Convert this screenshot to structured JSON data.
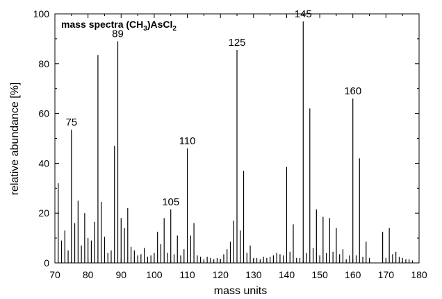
{
  "chart_data": {
    "type": "bar",
    "style": "stick-spectrum",
    "title": {
      "prefix": "mass spectra (CH",
      "sub1": "3",
      "mid": ")AsCl",
      "sub2": "2"
    },
    "xlabel": "mass units",
    "ylabel": "relative abundance [%]",
    "xlim": [
      70,
      180
    ],
    "ylim": [
      0,
      100
    ],
    "xticks": [
      70,
      80,
      90,
      100,
      110,
      120,
      130,
      140,
      150,
      160,
      170,
      180
    ],
    "yticks": [
      0,
      20,
      40,
      60,
      80,
      100
    ],
    "grid": false,
    "bar_color": "#000000",
    "peak_annotations": [
      {
        "x": 75,
        "text": "75"
      },
      {
        "x": 89,
        "text": "89"
      },
      {
        "x": 105,
        "text": "105"
      },
      {
        "x": 110,
        "text": "110"
      },
      {
        "x": 125,
        "text": "125"
      },
      {
        "x": 145,
        "text": "145"
      },
      {
        "x": 160,
        "text": "160"
      }
    ],
    "peaks": [
      {
        "x": 71,
        "y": 32
      },
      {
        "x": 72,
        "y": 9
      },
      {
        "x": 73,
        "y": 13
      },
      {
        "x": 74,
        "y": 5
      },
      {
        "x": 75,
        "y": 53.5
      },
      {
        "x": 76,
        "y": 16
      },
      {
        "x": 77,
        "y": 25
      },
      {
        "x": 78,
        "y": 7
      },
      {
        "x": 79,
        "y": 20
      },
      {
        "x": 80,
        "y": 10
      },
      {
        "x": 81,
        "y": 9
      },
      {
        "x": 82,
        "y": 16.5
      },
      {
        "x": 83,
        "y": 83.5
      },
      {
        "x": 84,
        "y": 24.5
      },
      {
        "x": 85,
        "y": 10.5
      },
      {
        "x": 86,
        "y": 4
      },
      {
        "x": 87,
        "y": 5
      },
      {
        "x": 88,
        "y": 47
      },
      {
        "x": 89,
        "y": 89
      },
      {
        "x": 90,
        "y": 18
      },
      {
        "x": 91,
        "y": 14
      },
      {
        "x": 92,
        "y": 22
      },
      {
        "x": 93,
        "y": 6.5
      },
      {
        "x": 94,
        "y": 5
      },
      {
        "x": 95,
        "y": 3
      },
      {
        "x": 96,
        "y": 3.5
      },
      {
        "x": 97,
        "y": 6
      },
      {
        "x": 98,
        "y": 2.5
      },
      {
        "x": 99,
        "y": 3
      },
      {
        "x": 100,
        "y": 4
      },
      {
        "x": 101,
        "y": 12.5
      },
      {
        "x": 102,
        "y": 7.5
      },
      {
        "x": 103,
        "y": 18
      },
      {
        "x": 104,
        "y": 4
      },
      {
        "x": 105,
        "y": 21.5
      },
      {
        "x": 106,
        "y": 3.5
      },
      {
        "x": 107,
        "y": 11
      },
      {
        "x": 108,
        "y": 3
      },
      {
        "x": 109,
        "y": 5.5
      },
      {
        "x": 110,
        "y": 46
      },
      {
        "x": 111,
        "y": 11
      },
      {
        "x": 112,
        "y": 16
      },
      {
        "x": 113,
        "y": 3
      },
      {
        "x": 114,
        "y": 2.5
      },
      {
        "x": 115,
        "y": 1.5
      },
      {
        "x": 116,
        "y": 2.5
      },
      {
        "x": 117,
        "y": 2
      },
      {
        "x": 118,
        "y": 1.5
      },
      {
        "x": 119,
        "y": 2
      },
      {
        "x": 120,
        "y": 1.5
      },
      {
        "x": 121,
        "y": 3.5
      },
      {
        "x": 122,
        "y": 5.5
      },
      {
        "x": 123,
        "y": 8.5
      },
      {
        "x": 124,
        "y": 17
      },
      {
        "x": 125,
        "y": 85.5
      },
      {
        "x": 126,
        "y": 13
      },
      {
        "x": 127,
        "y": 37
      },
      {
        "x": 128,
        "y": 4
      },
      {
        "x": 129,
        "y": 7
      },
      {
        "x": 130,
        "y": 2
      },
      {
        "x": 131,
        "y": 2
      },
      {
        "x": 132,
        "y": 1.5
      },
      {
        "x": 133,
        "y": 2.5
      },
      {
        "x": 134,
        "y": 2
      },
      {
        "x": 135,
        "y": 2.5
      },
      {
        "x": 136,
        "y": 3
      },
      {
        "x": 137,
        "y": 4
      },
      {
        "x": 138,
        "y": 3.5
      },
      {
        "x": 139,
        "y": 3
      },
      {
        "x": 140,
        "y": 38.5
      },
      {
        "x": 141,
        "y": 4.5
      },
      {
        "x": 142,
        "y": 15.5
      },
      {
        "x": 143,
        "y": 2
      },
      {
        "x": 144,
        "y": 2
      },
      {
        "x": 145,
        "y": 97
      },
      {
        "x": 146,
        "y": 4
      },
      {
        "x": 147,
        "y": 62
      },
      {
        "x": 148,
        "y": 6
      },
      {
        "x": 149,
        "y": 21.5
      },
      {
        "x": 150,
        "y": 3
      },
      {
        "x": 151,
        "y": 18.5
      },
      {
        "x": 152,
        "y": 4
      },
      {
        "x": 153,
        "y": 18
      },
      {
        "x": 154,
        "y": 4.5
      },
      {
        "x": 155,
        "y": 14
      },
      {
        "x": 156,
        "y": 3.5
      },
      {
        "x": 157,
        "y": 5.5
      },
      {
        "x": 158,
        "y": 1.5
      },
      {
        "x": 159,
        "y": 3
      },
      {
        "x": 160,
        "y": 66
      },
      {
        "x": 161,
        "y": 3
      },
      {
        "x": 162,
        "y": 42
      },
      {
        "x": 163,
        "y": 2.5
      },
      {
        "x": 164,
        "y": 8.5
      },
      {
        "x": 165,
        "y": 2
      },
      {
        "x": 169,
        "y": 12.5
      },
      {
        "x": 170,
        "y": 2
      },
      {
        "x": 171,
        "y": 14
      },
      {
        "x": 172,
        "y": 3.5
      },
      {
        "x": 173,
        "y": 4.5
      },
      {
        "x": 174,
        "y": 2.5
      },
      {
        "x": 175,
        "y": 2
      },
      {
        "x": 176,
        "y": 1.5
      },
      {
        "x": 177,
        "y": 1.5
      },
      {
        "x": 178,
        "y": 1
      }
    ]
  }
}
